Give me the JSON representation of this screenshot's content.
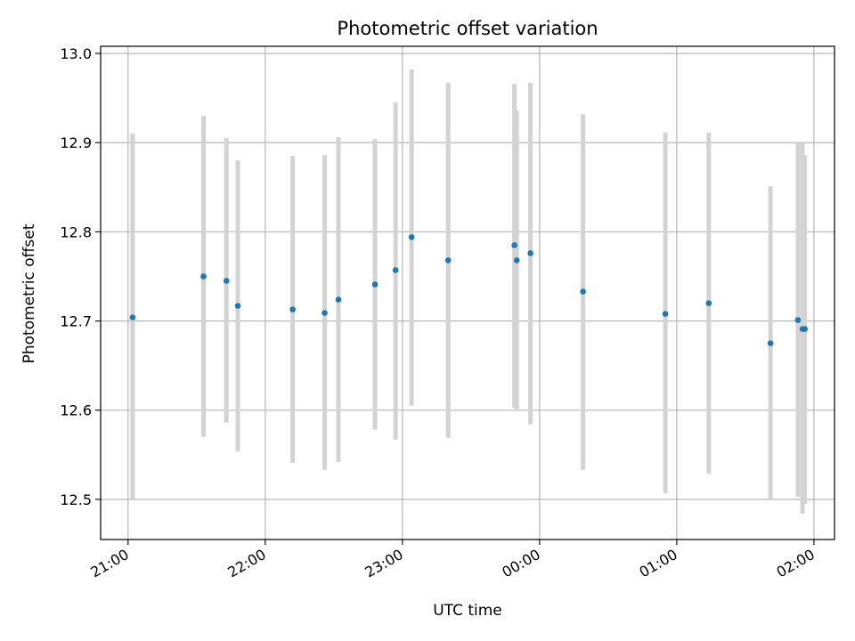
{
  "chart_data": {
    "type": "scatter",
    "title": "Photometric offset variation",
    "xlabel": "UTC time",
    "ylabel": "Photometric offset",
    "x_ticks": [
      "21:00",
      "22:00",
      "23:00",
      "00:00",
      "01:00",
      "02:00"
    ],
    "y_ticks": [
      "12.5",
      "12.6",
      "12.7",
      "12.8",
      "12.9",
      "13.0"
    ],
    "xlim": [
      "20:48",
      "02:09"
    ],
    "ylim": [
      12.455,
      13.008
    ],
    "grid": true,
    "colors": {
      "point": "#1f77b4",
      "errorbar": "#d3d3d3",
      "grid": "#b0b0b0"
    },
    "series": [
      {
        "points": [
          {
            "x": "21:02",
            "y": 12.704,
            "low": 12.5,
            "high": 12.91
          },
          {
            "x": "21:33",
            "y": 12.75,
            "low": 12.57,
            "high": 12.93
          },
          {
            "x": "21:43",
            "y": 12.745,
            "low": 12.586,
            "high": 12.905
          },
          {
            "x": "21:48",
            "y": 12.717,
            "low": 12.554,
            "high": 12.88
          },
          {
            "x": "22:12",
            "y": 12.713,
            "low": 12.541,
            "high": 12.885
          },
          {
            "x": "22:26",
            "y": 12.709,
            "low": 12.533,
            "high": 12.886
          },
          {
            "x": "22:32",
            "y": 12.724,
            "low": 12.542,
            "high": 12.906
          },
          {
            "x": "22:48",
            "y": 12.741,
            "low": 12.578,
            "high": 12.904
          },
          {
            "x": "22:57",
            "y": 12.757,
            "low": 12.567,
            "high": 12.945
          },
          {
            "x": "23:04",
            "y": 12.794,
            "low": 12.605,
            "high": 12.982
          },
          {
            "x": "23:20",
            "y": 12.768,
            "low": 12.569,
            "high": 12.967
          },
          {
            "x": "23:49",
            "y": 12.785,
            "low": 12.603,
            "high": 12.966
          },
          {
            "x": "23:50",
            "y": 12.768,
            "low": 12.601,
            "high": 12.936
          },
          {
            "x": "23:56",
            "y": 12.776,
            "low": 12.584,
            "high": 12.967
          },
          {
            "x": "00:19",
            "y": 12.733,
            "low": 12.533,
            "high": 12.932
          },
          {
            "x": "00:55",
            "y": 12.708,
            "low": 12.507,
            "high": 12.911
          },
          {
            "x": "01:14",
            "y": 12.72,
            "low": 12.529,
            "high": 12.911
          },
          {
            "x": "01:41",
            "y": 12.675,
            "low": 12.5,
            "high": 12.851
          },
          {
            "x": "01:53",
            "y": 12.701,
            "low": 12.503,
            "high": 12.9
          },
          {
            "x": "01:55",
            "y": 12.691,
            "low": 12.484,
            "high": 12.9
          },
          {
            "x": "01:56",
            "y": 12.691,
            "low": 12.495,
            "high": 12.886
          }
        ]
      }
    ]
  }
}
